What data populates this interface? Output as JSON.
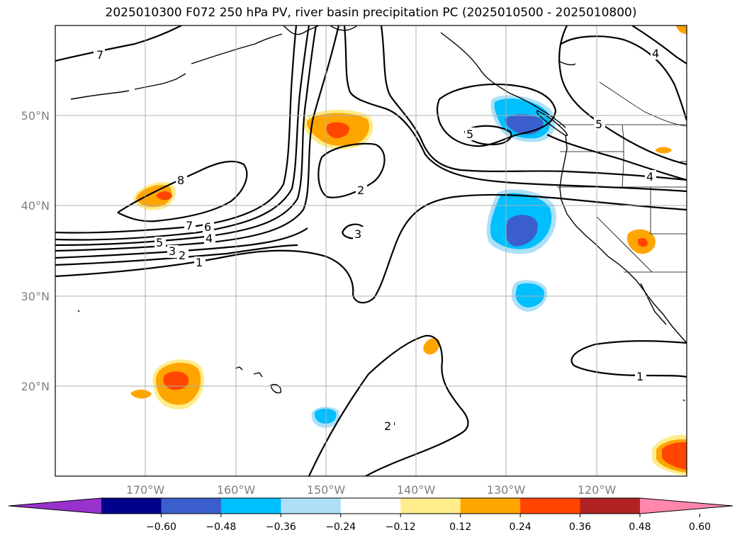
{
  "title": "2025010300 F072 250 hPa PV, river basin precipitation PC (2025010500 - 2025010800)",
  "map": {
    "lat_labels": [
      "50°N",
      "40°N",
      "30°N",
      "20°N"
    ],
    "lon_labels": [
      "170°W",
      "160°W",
      "150°W",
      "140°W",
      "130°W",
      "120°W"
    ],
    "contour_labels": [
      "7",
      "8",
      "7",
      "6",
      "5",
      "4",
      "3",
      "2",
      "1",
      "2",
      "3",
      "5",
      "5",
      "4",
      "4",
      "2",
      "1"
    ]
  },
  "colorbar": {
    "ticks": [
      "−0.60",
      "−0.48",
      "−0.36",
      "−0.24",
      "−0.12",
      "0.12",
      "0.24",
      "0.36",
      "0.48",
      "0.60"
    ],
    "colors": [
      "#9932CC",
      "#00008B",
      "#3A5FCD",
      "#00BFFF",
      "#ADE0F7",
      "#FFFFFF",
      "#FFEC8B",
      "#FFA500",
      "#FF4500",
      "#B22222",
      "#FF87AC"
    ]
  }
}
